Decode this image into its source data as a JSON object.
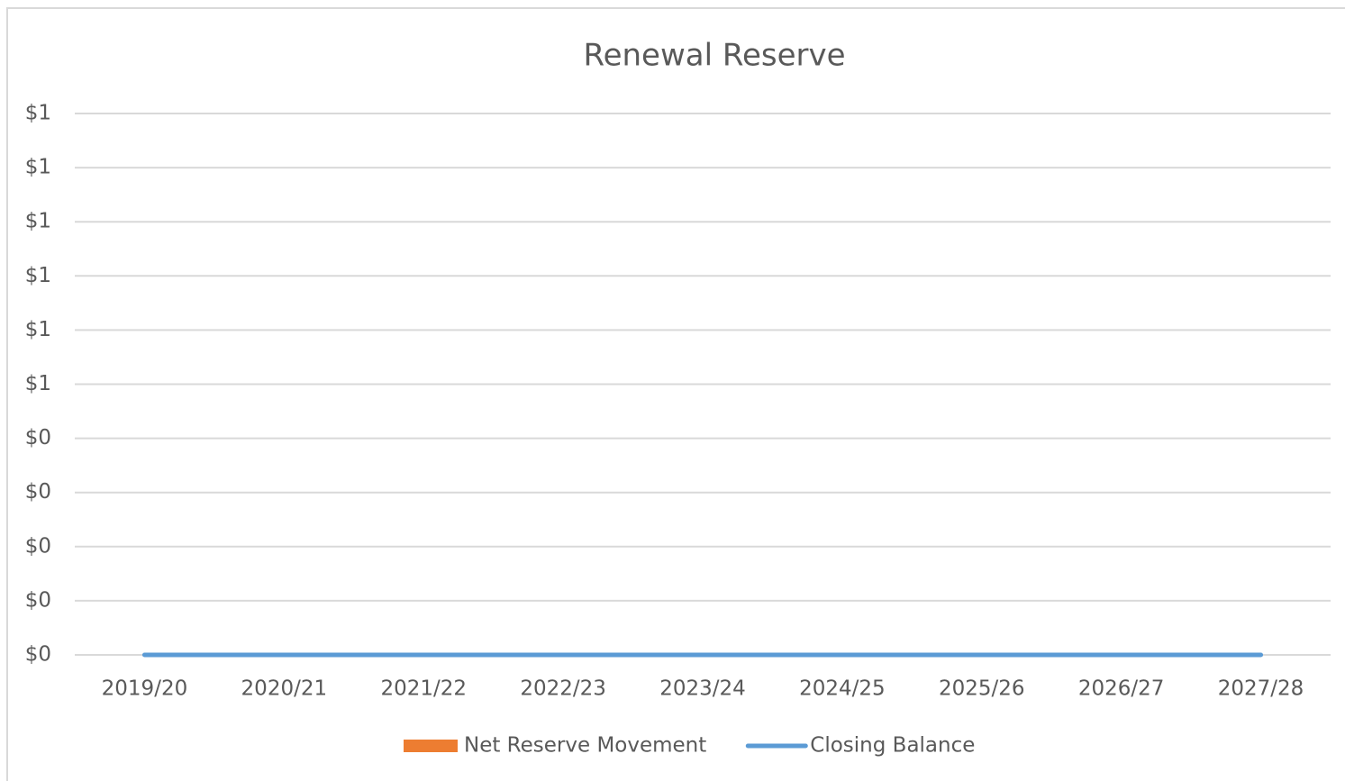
{
  "chart_data": {
    "type": "bar",
    "title": "Renewal Reserve",
    "categories": [
      "2019/20",
      "2020/21",
      "2021/22",
      "2022/23",
      "2023/24",
      "2024/25",
      "2025/26",
      "2026/27",
      "2027/28"
    ],
    "series": [
      {
        "name": "Net Reserve Movement",
        "type": "bar",
        "color": "#ed7d31",
        "values": [
          0,
          0,
          0,
          0,
          0,
          0,
          0,
          0,
          0
        ]
      },
      {
        "name": "Closing Balance",
        "type": "line",
        "color": "#5b9bd5",
        "values": [
          0,
          0,
          0,
          0,
          0,
          0,
          0,
          0,
          0
        ]
      }
    ],
    "ylim": [
      0,
      1
    ],
    "yticks": [
      {
        "value": 0,
        "label": "$0"
      },
      {
        "value": 0.1,
        "label": "$0"
      },
      {
        "value": 0.2,
        "label": "$0"
      },
      {
        "value": 0.3,
        "label": "$0"
      },
      {
        "value": 0.4,
        "label": "$0"
      },
      {
        "value": 0.5,
        "label": "$1"
      },
      {
        "value": 0.6,
        "label": "$1"
      },
      {
        "value": 0.7,
        "label": "$1"
      },
      {
        "value": 0.8,
        "label": "$1"
      },
      {
        "value": 0.9,
        "label": "$1"
      },
      {
        "value": 1,
        "label": "$1"
      }
    ],
    "grid": true,
    "legend": "bottom"
  }
}
